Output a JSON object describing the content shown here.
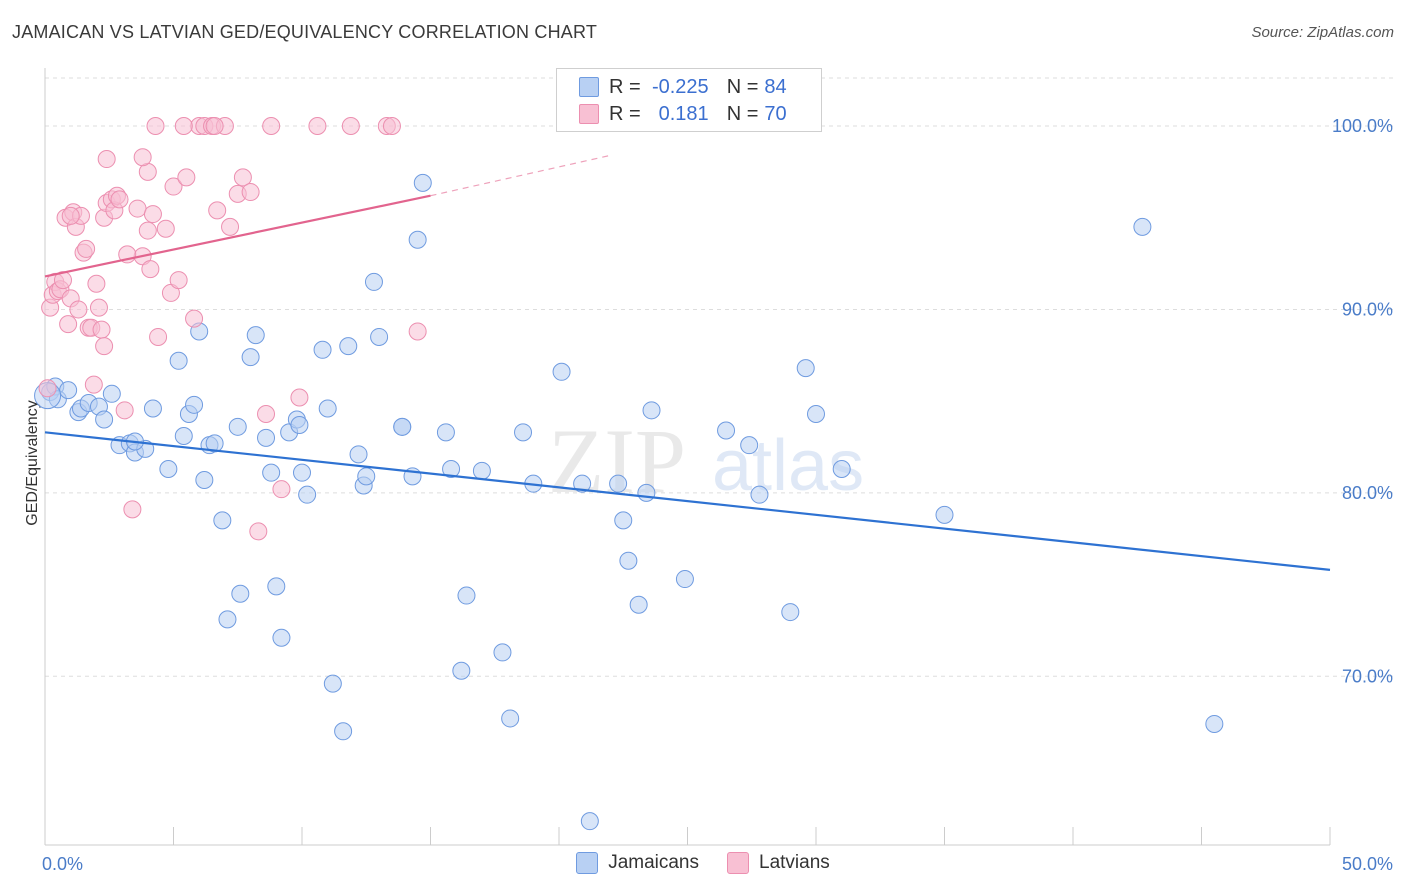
{
  "title": "JAMAICAN VS LATVIAN GED/EQUIVALENCY CORRELATION CHART",
  "source": "Source: ZipAtlas.com",
  "watermark": {
    "zip": "ZIP",
    "atlas": "atlas"
  },
  "colors": {
    "jamaicans_fill": "#b8d0f3",
    "jamaicans_stroke": "#6f9be0",
    "jamaicans_line": "#2e72d2",
    "latvians_fill": "#f8c0d3",
    "latvians_stroke": "#ec8fb0",
    "latvians_line": "#e2648e",
    "grid": "#dddddd",
    "tick_text": "#4a7cc8"
  },
  "legend": {
    "jamaicans": {
      "r_label": "R =",
      "r_value": "-0.225",
      "n_label": "N =",
      "n_value": "84"
    },
    "latvians": {
      "r_label": "R =",
      "r_value": "0.181",
      "n_label": "N =",
      "n_value": "70"
    }
  },
  "chart_data": {
    "type": "scatter",
    "title": "JAMAICAN VS LATVIAN GED/EQUIVALENCY CORRELATION CHART",
    "xlabel": "",
    "ylabel": "GED/Equivalency",
    "xlim": [
      0,
      50
    ],
    "ylim": [
      60.8,
      103.6
    ],
    "x_tick_labels": [
      "0.0%",
      "50.0%"
    ],
    "y_ticks": [
      70,
      80,
      90,
      100
    ],
    "y_tick_labels": [
      "70.0%",
      "80.0%",
      "90.0%",
      "100.0%"
    ],
    "grid": true,
    "legend_position": "bottom-center",
    "series": [
      {
        "name": "Jamaicans",
        "trend": {
          "x0": 0,
          "y0": 83.3,
          "x1": 50,
          "y1": 75.8
        },
        "points": [
          [
            0.2,
            85.5
          ],
          [
            0.4,
            85.8
          ],
          [
            0.5,
            85.1
          ],
          [
            0.9,
            85.6
          ],
          [
            1.3,
            84.4
          ],
          [
            1.4,
            84.6
          ],
          [
            1.7,
            84.9
          ],
          [
            2.1,
            84.7
          ],
          [
            2.3,
            84.0
          ],
          [
            2.6,
            85.4
          ],
          [
            2.9,
            82.6
          ],
          [
            3.3,
            82.7
          ],
          [
            3.5,
            82.2
          ],
          [
            3.9,
            82.4
          ],
          [
            4.2,
            84.6
          ],
          [
            4.8,
            81.3
          ],
          [
            5.2,
            87.2
          ],
          [
            5.4,
            83.1
          ],
          [
            5.6,
            84.3
          ],
          [
            5.8,
            84.8
          ],
          [
            6.0,
            88.8
          ],
          [
            6.2,
            80.7
          ],
          [
            6.4,
            82.6
          ],
          [
            6.6,
            82.7
          ],
          [
            6.9,
            78.5
          ],
          [
            7.1,
            73.1
          ],
          [
            7.5,
            83.6
          ],
          [
            7.6,
            74.5
          ],
          [
            8.0,
            87.4
          ],
          [
            8.2,
            88.6
          ],
          [
            8.6,
            83.0
          ],
          [
            8.8,
            81.1
          ],
          [
            9.0,
            74.9
          ],
          [
            9.2,
            72.1
          ],
          [
            9.5,
            83.3
          ],
          [
            9.8,
            84.0
          ],
          [
            10.0,
            81.1
          ],
          [
            10.2,
            79.9
          ],
          [
            10.8,
            87.8
          ],
          [
            11.0,
            84.6
          ],
          [
            11.2,
            69.6
          ],
          [
            11.6,
            67.0
          ],
          [
            11.8,
            88.0
          ],
          [
            12.2,
            82.1
          ],
          [
            12.4,
            80.4
          ],
          [
            12.8,
            91.5
          ],
          [
            13.0,
            88.5
          ],
          [
            13.9,
            83.6
          ],
          [
            14.3,
            80.9
          ],
          [
            14.5,
            93.8
          ],
          [
            14.7,
            96.9
          ],
          [
            15.6,
            83.3
          ],
          [
            15.8,
            81.3
          ],
          [
            16.2,
            70.3
          ],
          [
            16.4,
            74.4
          ],
          [
            17.8,
            71.3
          ],
          [
            18.1,
            67.7
          ],
          [
            18.6,
            83.3
          ],
          [
            19.0,
            80.5
          ],
          [
            20.1,
            86.6
          ],
          [
            20.9,
            80.5
          ],
          [
            22.3,
            80.5
          ],
          [
            22.5,
            78.5
          ],
          [
            22.7,
            76.3
          ],
          [
            23.1,
            73.9
          ],
          [
            23.4,
            80.0
          ],
          [
            23.6,
            84.5
          ],
          [
            24.9,
            75.3
          ],
          [
            26.5,
            83.4
          ],
          [
            27.4,
            82.6
          ],
          [
            27.8,
            79.9
          ],
          [
            29.0,
            73.5
          ],
          [
            29.6,
            86.8
          ],
          [
            30.0,
            84.3
          ],
          [
            31.0,
            81.3
          ],
          [
            35.0,
            78.8
          ],
          [
            42.7,
            94.5
          ],
          [
            45.5,
            67.4
          ],
          [
            21.2,
            62.1
          ],
          [
            12.5,
            80.9
          ],
          [
            3.5,
            82.8
          ],
          [
            13.9,
            83.6
          ],
          [
            17.0,
            81.2
          ],
          [
            9.9,
            83.7
          ]
        ]
      },
      {
        "name": "Latvians",
        "trend": {
          "x0": 0,
          "y0": 91.8,
          "x1": 15,
          "y1": 96.2,
          "dash_x1": 22,
          "dash_y1": 98.4
        },
        "points": [
          [
            0.1,
            85.7
          ],
          [
            0.2,
            90.1
          ],
          [
            0.3,
            90.8
          ],
          [
            0.4,
            91.5
          ],
          [
            0.5,
            91.0
          ],
          [
            0.6,
            91.1
          ],
          [
            0.7,
            91.6
          ],
          [
            0.8,
            95.0
          ],
          [
            0.9,
            89.2
          ],
          [
            1.0,
            90.6
          ],
          [
            1.1,
            95.3
          ],
          [
            1.2,
            94.5
          ],
          [
            1.3,
            90.0
          ],
          [
            1.4,
            95.1
          ],
          [
            1.5,
            93.1
          ],
          [
            1.6,
            93.3
          ],
          [
            1.7,
            89.0
          ],
          [
            1.8,
            89.0
          ],
          [
            1.9,
            85.9
          ],
          [
            2.0,
            91.4
          ],
          [
            2.1,
            90.1
          ],
          [
            2.2,
            88.9
          ],
          [
            2.3,
            95.0
          ],
          [
            2.4,
            95.8
          ],
          [
            2.6,
            96.0
          ],
          [
            2.7,
            95.4
          ],
          [
            2.8,
            96.2
          ],
          [
            2.9,
            96.0
          ],
          [
            3.1,
            84.5
          ],
          [
            3.4,
            79.1
          ],
          [
            3.6,
            95.5
          ],
          [
            3.8,
            92.9
          ],
          [
            4.0,
            97.5
          ],
          [
            4.0,
            94.3
          ],
          [
            4.2,
            95.2
          ],
          [
            4.4,
            88.5
          ],
          [
            4.7,
            94.4
          ],
          [
            4.9,
            90.9
          ],
          [
            5.0,
            96.7
          ],
          [
            5.2,
            91.6
          ],
          [
            5.5,
            97.2
          ],
          [
            5.8,
            89.5
          ],
          [
            6.0,
            100.0
          ],
          [
            6.2,
            100.0
          ],
          [
            6.5,
            100.0
          ],
          [
            6.7,
            95.4
          ],
          [
            7.0,
            100.0
          ],
          [
            7.2,
            94.5
          ],
          [
            7.5,
            96.3
          ],
          [
            7.7,
            97.2
          ],
          [
            8.0,
            96.4
          ],
          [
            8.3,
            77.9
          ],
          [
            8.6,
            84.3
          ],
          [
            8.8,
            100.0
          ],
          [
            9.2,
            80.2
          ],
          [
            9.9,
            85.2
          ],
          [
            10.6,
            100.0
          ],
          [
            11.9,
            100.0
          ],
          [
            13.3,
            100.0
          ],
          [
            13.5,
            100.0
          ],
          [
            14.5,
            88.8
          ],
          [
            2.4,
            98.2
          ],
          [
            3.2,
            93.0
          ],
          [
            4.3,
            100.0
          ],
          [
            5.4,
            100.0
          ],
          [
            3.8,
            98.3
          ],
          [
            1.0,
            95.1
          ],
          [
            2.3,
            88.0
          ],
          [
            6.6,
            100.0
          ],
          [
            4.1,
            92.2
          ]
        ]
      }
    ]
  }
}
